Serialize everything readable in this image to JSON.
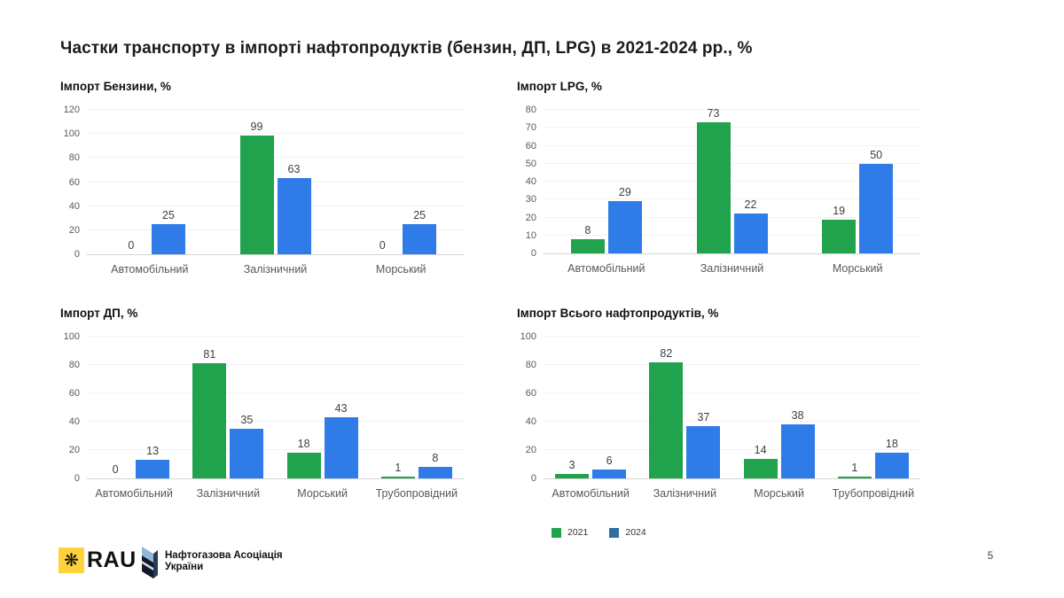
{
  "slide": {
    "title": "Частки транспорту в імпорті нафтопродуктів (бензин, ДП, LPG) в 2021-2024 рр., %",
    "page_number": "5"
  },
  "colors": {
    "green_2021": "#21a24d",
    "blue_2024": "#2f7ce8",
    "legend_blue_2024": "#2e6ca3"
  },
  "legend": {
    "items": [
      {
        "label": "2021",
        "color": "#21a24d"
      },
      {
        "label": "2024",
        "color": "#2e6ca3"
      }
    ],
    "position": "bottom"
  },
  "footer": {
    "rau_logo_text": "RAU",
    "association_name_line1": "Нафтогазова Асоціація",
    "association_name_line2": "України"
  },
  "chart_data": [
    {
      "type": "bar",
      "title": "Імпорт Бензини, %",
      "categories": [
        "Автомобільний",
        "Залізничний",
        "Морський"
      ],
      "series": [
        {
          "name": "2021",
          "values": [
            0,
            99,
            0
          ]
        },
        {
          "name": "2024",
          "values": [
            25,
            63,
            25
          ]
        }
      ],
      "xlabel": "",
      "ylabel": "",
      "ylim": [
        0,
        120
      ],
      "yticks": [
        0,
        20,
        40,
        60,
        80,
        100,
        120
      ],
      "grid": true,
      "data_labels": true
    },
    {
      "type": "bar",
      "title": "Імпорт LPG, %",
      "categories": [
        "Автомобільний",
        "Залізничний",
        "Морський"
      ],
      "series": [
        {
          "name": "2021",
          "values": [
            8,
            73,
            19
          ]
        },
        {
          "name": "2024",
          "values": [
            29,
            22,
            50
          ]
        }
      ],
      "xlabel": "",
      "ylabel": "",
      "ylim": [
        0,
        80
      ],
      "yticks": [
        0,
        10,
        20,
        30,
        40,
        50,
        60,
        70,
        80
      ],
      "grid": true,
      "data_labels": true
    },
    {
      "type": "bar",
      "title": "Імпорт ДП, %",
      "categories": [
        "Автомобільний",
        "Залізничний",
        "Морський",
        "Трубопровідний"
      ],
      "series": [
        {
          "name": "2021",
          "values": [
            0,
            81,
            18,
            1
          ]
        },
        {
          "name": "2024",
          "values": [
            13,
            35,
            43,
            8
          ]
        }
      ],
      "xlabel": "",
      "ylabel": "",
      "ylim": [
        0,
        100
      ],
      "yticks": [
        0,
        20,
        40,
        60,
        80,
        100
      ],
      "grid": true,
      "data_labels": true
    },
    {
      "type": "bar",
      "title": "Імпорт Всього нафтопродуктів, %",
      "categories": [
        "Автомобільний",
        "Залізничний",
        "Морський",
        "Трубопровідний"
      ],
      "series": [
        {
          "name": "2021",
          "values": [
            3,
            82,
            14,
            1
          ]
        },
        {
          "name": "2024",
          "values": [
            6,
            37,
            38,
            18
          ]
        }
      ],
      "xlabel": "",
      "ylabel": "",
      "ylim": [
        0,
        100
      ],
      "yticks": [
        0,
        20,
        40,
        60,
        80,
        100
      ],
      "grid": true,
      "data_labels": true
    }
  ]
}
